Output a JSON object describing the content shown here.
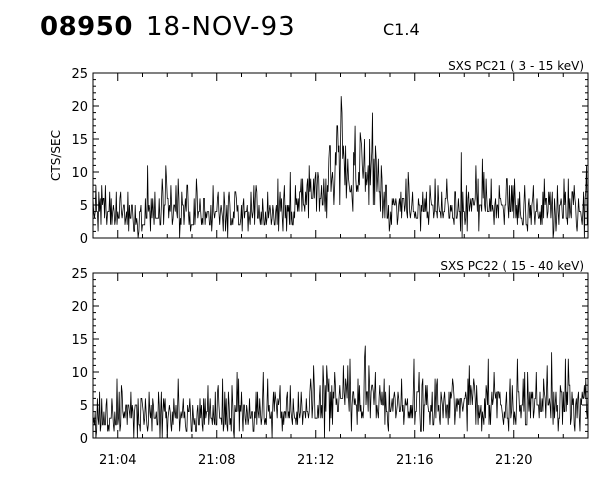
{
  "header": {
    "event_id": "08950",
    "date": "18-NOV-93",
    "flare_class": "C1.4"
  },
  "chart_data": [
    {
      "type": "line",
      "title": "SXS PC21  (  3 - 15 keV)",
      "ylabel": "CTS/SEC",
      "xlabel": "",
      "ylim": [
        0,
        25
      ],
      "yticks": [
        0,
        5,
        10,
        15,
        20,
        25
      ],
      "xlim": [
        "21:03",
        "21:23"
      ],
      "series": [
        {
          "x": [
            "21:03",
            "21:04",
            "21:05",
            "21:06",
            "21:07",
            "21:08",
            "21:09",
            "21:10",
            "21:11",
            "21:12",
            "21:13",
            "21:14",
            "21:15",
            "21:16",
            "21:17",
            "21:18",
            "21:19",
            "21:20",
            "21:21",
            "21:22",
            "21:23"
          ],
          "values": [
            4,
            4,
            4,
            4.5,
            4.5,
            4,
            4,
            4,
            5,
            8,
            12,
            11,
            6,
            5,
            5,
            4.5,
            5,
            4.5,
            4.5,
            4.5,
            4.5
          ]
        }
      ]
    },
    {
      "type": "line",
      "title": "SXS PC22  ( 15 - 40 keV)",
      "ylabel": "",
      "xlabel": "",
      "ylim": [
        0,
        25
      ],
      "yticks": [
        0,
        5,
        10,
        15,
        20,
        25
      ],
      "xlim": [
        "21:03",
        "21:23"
      ],
      "xticks": [
        "21:04",
        "21:08",
        "21:12",
        "21:16",
        "21:20"
      ],
      "series": [
        {
          "x": [
            "21:03",
            "21:04",
            "21:05",
            "21:06",
            "21:07",
            "21:08",
            "21:09",
            "21:10",
            "21:11",
            "21:12",
            "21:13",
            "21:14",
            "21:15",
            "21:16",
            "21:17",
            "21:18",
            "21:19",
            "21:20",
            "21:21",
            "21:22",
            "21:23"
          ],
          "values": [
            4,
            4,
            4,
            4,
            4,
            4,
            4.5,
            4.5,
            5,
            6,
            6.5,
            6.5,
            6,
            5.5,
            5.5,
            5.5,
            5.5,
            5.5,
            5.5,
            5.5,
            5.5
          ]
        }
      ]
    }
  ]
}
